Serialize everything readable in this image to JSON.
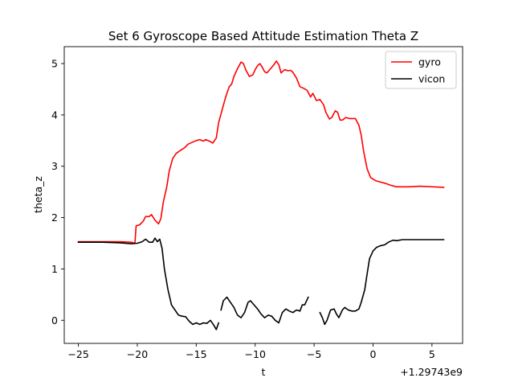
{
  "chart_data": {
    "type": "line",
    "title": "Set 6 Gyroscope Based Attitude Estimation Theta Z",
    "xlabel": "t",
    "ylabel": "theta_z",
    "x_offset_label": "+1.29743e9",
    "xlim": [
      -26.2,
      7.6
    ],
    "ylim": [
      -0.45,
      5.33
    ],
    "xticks": [
      -25,
      -20,
      -15,
      -10,
      -5,
      0,
      5
    ],
    "xtick_labels": [
      "−25",
      "−20",
      "−15",
      "−10",
      "−5",
      "0",
      "5"
    ],
    "yticks": [
      0,
      1,
      2,
      3,
      4,
      5
    ],
    "ytick_labels": [
      "0",
      "1",
      "2",
      "3",
      "4",
      "5"
    ],
    "grid": false,
    "legend_position": "top-right",
    "series": [
      {
        "name": "gyro",
        "color": "#ff0000",
        "segments": [
          [
            [
              -25,
              1.53
            ],
            [
              -23,
              1.53
            ],
            [
              -21.5,
              1.53
            ],
            [
              -20.5,
              1.52
            ],
            [
              -20.2,
              1.5
            ],
            [
              -20.1,
              1.84
            ],
            [
              -19.8,
              1.86
            ],
            [
              -19.5,
              1.93
            ],
            [
              -19.3,
              2.02
            ],
            [
              -19.0,
              2.02
            ],
            [
              -18.8,
              2.06
            ],
            [
              -18.5,
              1.95
            ],
            [
              -18.2,
              1.88
            ],
            [
              -18.0,
              1.98
            ],
            [
              -17.8,
              2.3
            ],
            [
              -17.5,
              2.6
            ],
            [
              -17.3,
              2.9
            ],
            [
              -17.0,
              3.15
            ],
            [
              -16.7,
              3.25
            ],
            [
              -16.4,
              3.3
            ],
            [
              -16.0,
              3.36
            ],
            [
              -15.7,
              3.43
            ],
            [
              -15.3,
              3.47
            ],
            [
              -15.0,
              3.5
            ],
            [
              -14.7,
              3.52
            ],
            [
              -14.4,
              3.49
            ],
            [
              -14.2,
              3.52
            ],
            [
              -14.0,
              3.5
            ],
            [
              -13.8,
              3.48
            ],
            [
              -13.6,
              3.45
            ],
            [
              -13.3,
              3.55
            ],
            [
              -13.1,
              3.85
            ],
            [
              -12.8,
              4.1
            ],
            [
              -12.5,
              4.35
            ],
            [
              -12.2,
              4.55
            ],
            [
              -12.0,
              4.6
            ],
            [
              -11.8,
              4.75
            ],
            [
              -11.5,
              4.9
            ],
            [
              -11.2,
              5.03
            ],
            [
              -11.0,
              5.0
            ],
            [
              -10.8,
              4.88
            ],
            [
              -10.5,
              4.75
            ],
            [
              -10.2,
              4.78
            ],
            [
              -10.0,
              4.88
            ],
            [
              -9.8,
              4.96
            ],
            [
              -9.6,
              5.0
            ],
            [
              -9.4,
              4.93
            ],
            [
              -9.2,
              4.84
            ],
            [
              -9.0,
              4.82
            ],
            [
              -8.7,
              4.9
            ],
            [
              -8.4,
              4.98
            ],
            [
              -8.2,
              5.05
            ],
            [
              -8.0,
              4.98
            ],
            [
              -7.8,
              4.82
            ],
            [
              -7.5,
              4.88
            ],
            [
              -7.2,
              4.86
            ],
            [
              -7.0,
              4.87
            ],
            [
              -6.8,
              4.83
            ],
            [
              -6.5,
              4.72
            ],
            [
              -6.2,
              4.55
            ],
            [
              -5.9,
              4.52
            ],
            [
              -5.6,
              4.48
            ],
            [
              -5.3,
              4.35
            ],
            [
              -5.1,
              4.42
            ],
            [
              -4.8,
              4.28
            ],
            [
              -4.5,
              4.3
            ],
            [
              -4.2,
              4.2
            ],
            [
              -4.0,
              4.05
            ],
            [
              -3.7,
              3.92
            ],
            [
              -3.5,
              3.95
            ],
            [
              -3.2,
              4.08
            ],
            [
              -3.0,
              4.05
            ],
            [
              -2.8,
              3.9
            ],
            [
              -2.6,
              3.9
            ],
            [
              -2.3,
              3.95
            ],
            [
              -2.0,
              3.93
            ],
            [
              -1.5,
              3.93
            ],
            [
              -1.2,
              3.8
            ],
            [
              -1.0,
              3.6
            ],
            [
              -0.8,
              3.3
            ],
            [
              -0.5,
              2.95
            ],
            [
              -0.2,
              2.78
            ],
            [
              0.2,
              2.72
            ],
            [
              0.5,
              2.7
            ],
            [
              1.0,
              2.67
            ],
            [
              1.5,
              2.63
            ],
            [
              2.0,
              2.6
            ],
            [
              3.0,
              2.6
            ],
            [
              4.0,
              2.61
            ],
            [
              5.0,
              2.6
            ],
            [
              6.0,
              2.59
            ]
          ]
        ]
      },
      {
        "name": "vicon",
        "color": "#000000",
        "segments": [
          [
            [
              -25,
              1.52
            ],
            [
              -23,
              1.52
            ],
            [
              -21.5,
              1.51
            ],
            [
              -20.5,
              1.49
            ],
            [
              -20.0,
              1.5
            ],
            [
              -19.6,
              1.53
            ],
            [
              -19.3,
              1.58
            ],
            [
              -19.0,
              1.52
            ],
            [
              -18.7,
              1.52
            ],
            [
              -18.5,
              1.6
            ],
            [
              -18.3,
              1.53
            ],
            [
              -18.1,
              1.58
            ],
            [
              -17.9,
              1.4
            ],
            [
              -17.7,
              1.0
            ],
            [
              -17.4,
              0.6
            ],
            [
              -17.1,
              0.3
            ],
            [
              -16.8,
              0.2
            ],
            [
              -16.5,
              0.1
            ],
            [
              -16.2,
              0.08
            ],
            [
              -15.9,
              0.07
            ],
            [
              -15.6,
              -0.02
            ],
            [
              -15.3,
              -0.08
            ],
            [
              -15.0,
              -0.05
            ],
            [
              -14.7,
              -0.08
            ],
            [
              -14.4,
              -0.05
            ],
            [
              -14.1,
              -0.06
            ],
            [
              -13.8,
              0.0
            ],
            [
              -13.5,
              -0.1
            ],
            [
              -13.3,
              -0.18
            ],
            [
              -13.1,
              -0.05
            ]
          ],
          [
            [
              -12.9,
              0.2
            ],
            [
              -12.7,
              0.38
            ],
            [
              -12.4,
              0.45
            ],
            [
              -12.1,
              0.35
            ],
            [
              -11.8,
              0.25
            ],
            [
              -11.5,
              0.1
            ],
            [
              -11.2,
              0.05
            ],
            [
              -10.9,
              0.15
            ],
            [
              -10.6,
              0.35
            ],
            [
              -10.4,
              0.38
            ],
            [
              -10.1,
              0.3
            ],
            [
              -9.8,
              0.22
            ],
            [
              -9.5,
              0.12
            ],
            [
              -9.2,
              0.05
            ],
            [
              -8.9,
              0.1
            ],
            [
              -8.6,
              0.08
            ],
            [
              -8.3,
              0.0
            ],
            [
              -8.0,
              -0.05
            ],
            [
              -7.7,
              0.15
            ],
            [
              -7.4,
              0.22
            ],
            [
              -7.1,
              0.18
            ],
            [
              -6.8,
              0.15
            ],
            [
              -6.5,
              0.2
            ],
            [
              -6.2,
              0.18
            ],
            [
              -6.0,
              0.3
            ],
            [
              -5.8,
              0.3
            ],
            [
              -5.5,
              0.45
            ]
          ],
          [
            [
              -4.5,
              0.15
            ],
            [
              -4.3,
              0.05
            ],
            [
              -4.1,
              -0.08
            ],
            [
              -3.9,
              0.0
            ],
            [
              -3.6,
              0.2
            ],
            [
              -3.3,
              0.22
            ],
            [
              -3.1,
              0.12
            ],
            [
              -2.9,
              0.05
            ],
            [
              -2.6,
              0.2
            ],
            [
              -2.4,
              0.25
            ],
            [
              -2.1,
              0.2
            ],
            [
              -1.8,
              0.18
            ],
            [
              -1.5,
              0.18
            ],
            [
              -1.2,
              0.22
            ],
            [
              -1.0,
              0.35
            ],
            [
              -0.7,
              0.6
            ],
            [
              -0.5,
              0.9
            ],
            [
              -0.3,
              1.2
            ],
            [
              0.0,
              1.35
            ],
            [
              0.3,
              1.42
            ],
            [
              0.6,
              1.45
            ],
            [
              1.0,
              1.47
            ],
            [
              1.3,
              1.52
            ],
            [
              1.7,
              1.56
            ],
            [
              2.0,
              1.55
            ],
            [
              2.5,
              1.57
            ],
            [
              3.0,
              1.57
            ],
            [
              4.0,
              1.57
            ],
            [
              5.0,
              1.57
            ],
            [
              6.0,
              1.57
            ]
          ]
        ]
      }
    ]
  }
}
